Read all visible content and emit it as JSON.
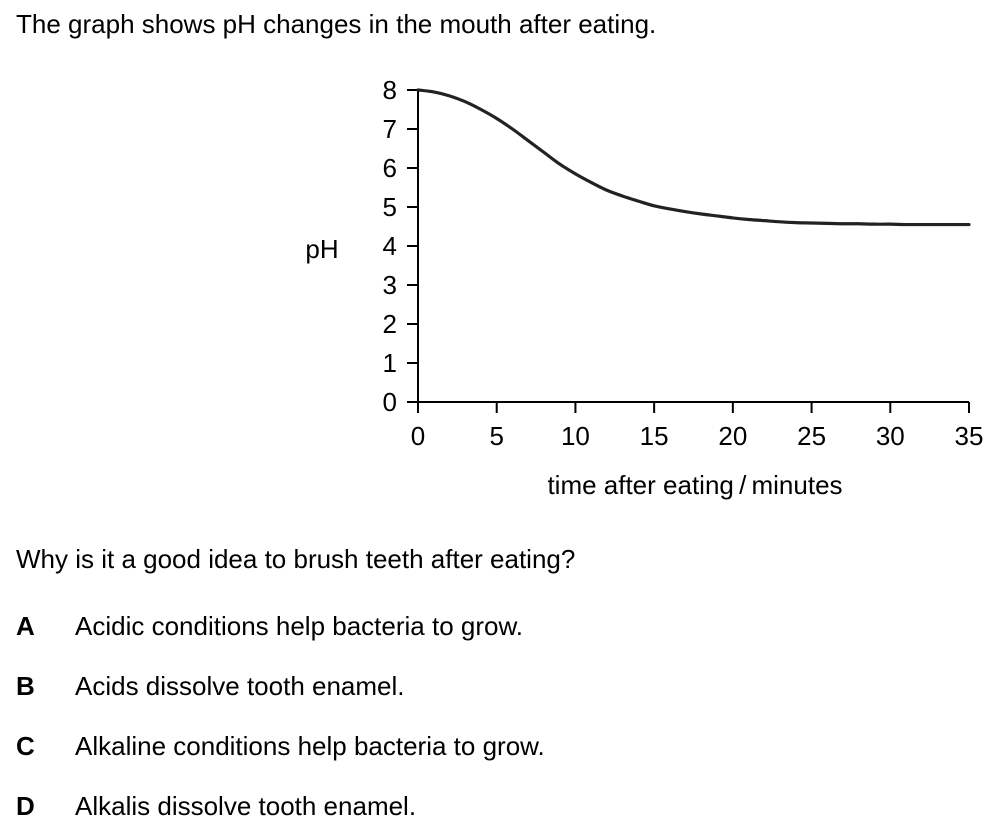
{
  "intro": "The graph shows pH changes in the mouth after eating.",
  "chart_data": {
    "type": "line",
    "title": "",
    "xlabel": "time after eating / minutes",
    "ylabel": "pH",
    "xlim": [
      0,
      35
    ],
    "ylim": [
      0,
      8
    ],
    "xticks": [
      0,
      5,
      10,
      15,
      20,
      25,
      30,
      35
    ],
    "yticks": [
      0,
      1,
      2,
      3,
      4,
      5,
      6,
      7,
      8
    ],
    "grid": false,
    "legend": "none",
    "series": [
      {
        "color": "#222222",
        "x": [
          0,
          1,
          2,
          3,
          4,
          5,
          6,
          7,
          8,
          9,
          10,
          11,
          12,
          13,
          14,
          15,
          16,
          17,
          18,
          19,
          20,
          21,
          22,
          23,
          24,
          25,
          26,
          27,
          28,
          29,
          30,
          31,
          32,
          33,
          34,
          35
        ],
        "y": [
          8.0,
          7.95,
          7.85,
          7.7,
          7.5,
          7.27,
          7.0,
          6.7,
          6.4,
          6.1,
          5.85,
          5.63,
          5.43,
          5.28,
          5.15,
          5.03,
          4.95,
          4.88,
          4.82,
          4.77,
          4.72,
          4.68,
          4.65,
          4.62,
          4.6,
          4.59,
          4.58,
          4.57,
          4.57,
          4.56,
          4.56,
          4.55,
          4.55,
          4.55,
          4.55,
          4.55
        ]
      }
    ]
  },
  "question": "Why is it a good idea to brush teeth after eating?",
  "options": [
    {
      "letter": "A",
      "text": "Acidic conditions help bacteria to grow."
    },
    {
      "letter": "B",
      "text": "Acids dissolve tooth enamel."
    },
    {
      "letter": "C",
      "text": "Alkaline conditions help bacteria to grow."
    },
    {
      "letter": "D",
      "text": "Alkalis dissolve tooth enamel."
    }
  ]
}
